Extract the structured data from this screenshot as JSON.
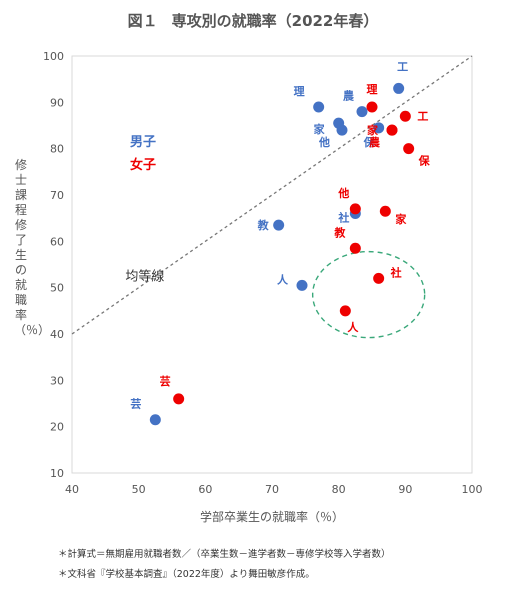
{
  "chart_data": {
    "type": "scatter",
    "title_prefix": "図１",
    "title": "専攻別の就職率（2022年春）",
    "xlabel": "学部卒業生の就職率（％）",
    "ylabel": "修士課程修了生の就職率（％）",
    "xlim": [
      40,
      100
    ],
    "ylim": [
      10,
      100
    ],
    "x_ticks": [
      "40",
      "50",
      "60",
      "70",
      "80",
      "90",
      "100"
    ],
    "y_ticks": [
      "10",
      "20",
      "30",
      "40",
      "50",
      "60",
      "70",
      "80",
      "90",
      "100"
    ],
    "grid": false,
    "legend_placement": "left",
    "colors": {
      "male": "#4472c4",
      "female": "#ee0000",
      "diagonal": "#777777",
      "ellipse": "#3aa87a"
    },
    "diagonal_label": "均等線",
    "series": [
      {
        "name": "男子",
        "points": [
          {
            "label": "理",
            "x": 77,
            "y": 89
          },
          {
            "label": "農",
            "x": 83.5,
            "y": 88
          },
          {
            "label": "工",
            "x": 89,
            "y": 93
          },
          {
            "label": "家",
            "x": 80,
            "y": 85.5
          },
          {
            "label": "他",
            "x": 80.5,
            "y": 84
          },
          {
            "label": "保",
            "x": 86,
            "y": 84.5
          },
          {
            "label": "社",
            "x": 82.5,
            "y": 66
          },
          {
            "label": "教",
            "x": 71,
            "y": 63.5
          },
          {
            "label": "人",
            "x": 74.5,
            "y": 50.5
          },
          {
            "label": "芸",
            "x": 52.5,
            "y": 21.5
          }
        ]
      },
      {
        "name": "女子",
        "points": [
          {
            "label": "理",
            "x": 85,
            "y": 89
          },
          {
            "label": "工",
            "x": 90,
            "y": 87
          },
          {
            "label": "家",
            "x": 88,
            "y": 84
          },
          {
            "label": "農",
            "x": 88,
            "y": 84
          },
          {
            "label": "保",
            "x": 90.5,
            "y": 80
          },
          {
            "label": "他",
            "x": 82.5,
            "y": 67
          },
          {
            "label": "家",
            "x": 87,
            "y": 66.5
          },
          {
            "label": "教",
            "x": 82.5,
            "y": 58.5
          },
          {
            "label": "社",
            "x": 86,
            "y": 52
          },
          {
            "label": "人",
            "x": 81,
            "y": 45
          },
          {
            "label": "芸",
            "x": 56,
            "y": 26
          }
        ]
      }
    ],
    "notes": [
      "＊計算式＝無期雇用就職者数／（卒業生数－進学者数－専修学校等入学者数）",
      "＊文科省『学校基本調査』（2022年度）より舞田敏彦作成。"
    ]
  }
}
